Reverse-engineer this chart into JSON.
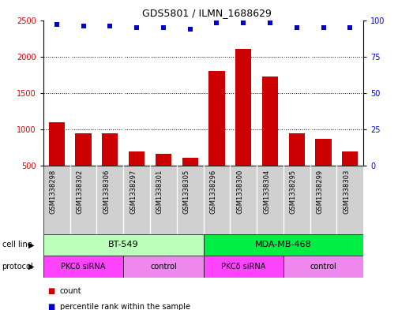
{
  "title": "GDS5801 / ILMN_1688629",
  "samples": [
    "GSM1338298",
    "GSM1338302",
    "GSM1338306",
    "GSM1338297",
    "GSM1338301",
    "GSM1338305",
    "GSM1338296",
    "GSM1338300",
    "GSM1338304",
    "GSM1338295",
    "GSM1338299",
    "GSM1338303"
  ],
  "counts": [
    1100,
    950,
    950,
    700,
    670,
    615,
    1800,
    2110,
    1730,
    950,
    870,
    700
  ],
  "percentile": [
    97,
    96,
    96,
    95,
    95,
    94,
    98,
    98,
    98,
    95,
    95,
    95
  ],
  "ylim_left": [
    500,
    2500
  ],
  "ylim_right": [
    0,
    100
  ],
  "yticks_left": [
    500,
    1000,
    1500,
    2000,
    2500
  ],
  "yticks_right": [
    0,
    25,
    50,
    75,
    100
  ],
  "bar_color": "#cc0000",
  "dot_color": "#0000cc",
  "plot_bg_color": "#ffffff",
  "sample_box_color": "#d0d0d0",
  "cell_line_groups": [
    {
      "label": "BT-549",
      "start": 0,
      "end": 6,
      "color": "#bbffbb"
    },
    {
      "label": "MDA-MB-468",
      "start": 6,
      "end": 12,
      "color": "#00ee44"
    }
  ],
  "protocol_groups": [
    {
      "label": "PKCδ siRNA",
      "start": 0,
      "end": 3,
      "color": "#ff44ff"
    },
    {
      "label": "control",
      "start": 3,
      "end": 6,
      "color": "#ee88ee"
    },
    {
      "label": "PKCδ siRNA",
      "start": 6,
      "end": 9,
      "color": "#ff44ff"
    },
    {
      "label": "control",
      "start": 9,
      "end": 12,
      "color": "#ee88ee"
    }
  ],
  "grid_color": "#000000",
  "legend_items": [
    {
      "label": "count",
      "color": "#cc0000"
    },
    {
      "label": "percentile rank within the sample",
      "color": "#0000cc"
    }
  ]
}
